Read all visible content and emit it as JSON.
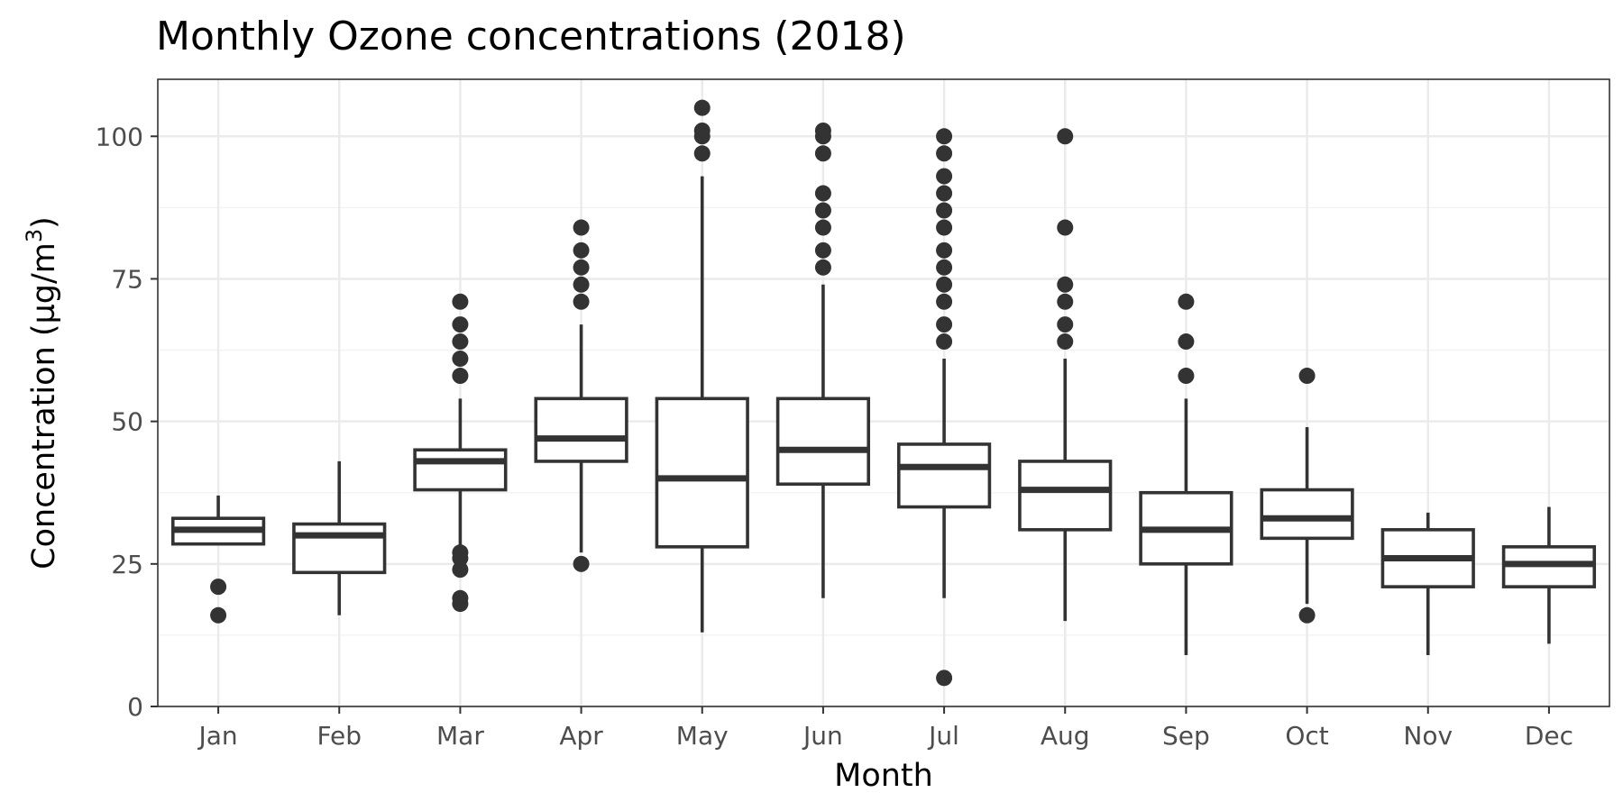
{
  "chart_data": {
    "type": "boxplot",
    "title": "Monthly Ozone concentrations (2018)",
    "xlabel": "Month",
    "ylabel": "Concentration (µg/m",
    "ylabel_superscript": "3",
    "ylabel_suffix": ")",
    "ylim": [
      0,
      110
    ],
    "yticks": [
      0,
      25,
      50,
      75,
      100
    ],
    "yticks_minor": [
      12.5,
      37.5,
      62.5,
      87.5
    ],
    "grid": true,
    "legend": "none",
    "colors": {
      "stroke": "#333333",
      "fill": "#ffffff",
      "grid": "#ebebeb",
      "tick_text": "#4d4d4d"
    },
    "categories": [
      "Jan",
      "Feb",
      "Mar",
      "Apr",
      "May",
      "Jun",
      "Jul",
      "Aug",
      "Sep",
      "Oct",
      "Nov",
      "Dec"
    ],
    "boxes": [
      {
        "month": "Jan",
        "lower_whisker": 28.5,
        "q1": 28.5,
        "median": 31,
        "q3": 33,
        "upper_whisker": 37,
        "outliers": [
          21,
          16
        ]
      },
      {
        "month": "Feb",
        "lower_whisker": 16,
        "q1": 23.5,
        "median": 30,
        "q3": 32,
        "upper_whisker": 43,
        "outliers": []
      },
      {
        "month": "Mar",
        "lower_whisker": 28,
        "q1": 38,
        "median": 43,
        "q3": 45,
        "upper_whisker": 54,
        "outliers": [
          71,
          67,
          64,
          61,
          58,
          27,
          26,
          24,
          19,
          18
        ]
      },
      {
        "month": "Apr",
        "lower_whisker": 27,
        "q1": 43,
        "median": 47,
        "q3": 54,
        "upper_whisker": 67,
        "outliers": [
          84,
          80,
          77,
          74,
          71,
          25
        ]
      },
      {
        "month": "May",
        "lower_whisker": 13,
        "q1": 28,
        "median": 40,
        "q3": 54,
        "upper_whisker": 93,
        "outliers": [
          105,
          101,
          100,
          97
        ]
      },
      {
        "month": "Jun",
        "lower_whisker": 19,
        "q1": 39,
        "median": 45,
        "q3": 54,
        "upper_whisker": 74,
        "outliers": [
          101,
          100,
          97,
          90,
          87,
          84,
          80,
          77
        ]
      },
      {
        "month": "Jul",
        "lower_whisker": 19,
        "q1": 35,
        "median": 42,
        "q3": 46,
        "upper_whisker": 61,
        "outliers": [
          100,
          97,
          93,
          90,
          87,
          84,
          80,
          77,
          74,
          71,
          67,
          64,
          5
        ]
      },
      {
        "month": "Aug",
        "lower_whisker": 15,
        "q1": 31,
        "median": 38,
        "q3": 43,
        "upper_whisker": 61,
        "outliers": [
          100,
          84,
          74,
          71,
          67,
          64
        ]
      },
      {
        "month": "Sep",
        "lower_whisker": 9,
        "q1": 25,
        "median": 31,
        "q3": 37.5,
        "upper_whisker": 54,
        "outliers": [
          71,
          64,
          58
        ]
      },
      {
        "month": "Oct",
        "lower_whisker": 18,
        "q1": 29.5,
        "median": 33,
        "q3": 38,
        "upper_whisker": 49,
        "outliers": [
          58,
          16
        ]
      },
      {
        "month": "Nov",
        "lower_whisker": 9,
        "q1": 21,
        "median": 26,
        "q3": 31,
        "upper_whisker": 34,
        "outliers": []
      },
      {
        "month": "Dec",
        "lower_whisker": 11,
        "q1": 21,
        "median": 25,
        "q3": 28,
        "upper_whisker": 35,
        "outliers": []
      }
    ]
  }
}
